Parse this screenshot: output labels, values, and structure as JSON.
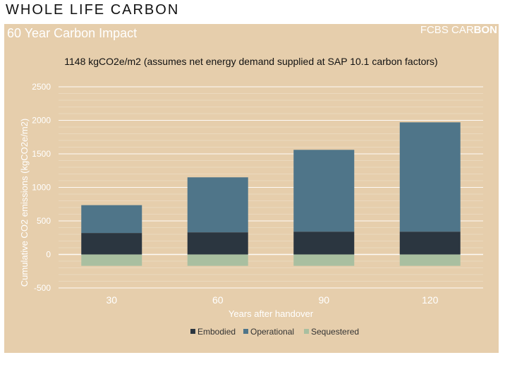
{
  "page": {
    "header": "WHOLE LIFE CARBON"
  },
  "panel": {
    "title": "60 Year Carbon Impact",
    "brand_light": "FCBS CAR",
    "brand_bold": "BON"
  },
  "colors": {
    "panel_bg": "#e6ceac",
    "embodied": "#2b3640",
    "operational": "#4f7589",
    "sequestered": "#a9bfa0",
    "grid": "#ffffff"
  },
  "chart_data": {
    "type": "bar",
    "stacked": true,
    "title": "1148 kgCO2e/m2 (assumes net energy demand supplied at SAP 10.1 carbon factors)",
    "xlabel": "Years after handover",
    "ylabel": "Cumulative CO2 emissions (kgCO2e/m2)",
    "ylim": [
      -500,
      2500
    ],
    "yticks": [
      -500,
      0,
      500,
      1000,
      1500,
      2000,
      2500
    ],
    "categories": [
      "30",
      "60",
      "90",
      "120"
    ],
    "series": [
      {
        "name": "Embodied",
        "values": [
          320,
          330,
          340,
          340
        ]
      },
      {
        "name": "Operational",
        "values": [
          415,
          820,
          1220,
          1630
        ]
      },
      {
        "name": "Sequestered",
        "values": [
          -170,
          -170,
          -170,
          -170
        ]
      }
    ],
    "legend_position": "bottom"
  }
}
